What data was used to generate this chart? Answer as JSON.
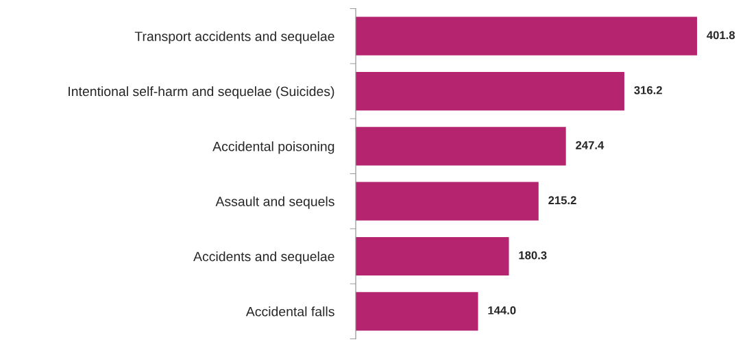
{
  "chart_data": {
    "type": "bar",
    "orientation": "horizontal",
    "categories": [
      "Transport accidents and sequelae",
      "Intentional self-harm and sequelae (Suicides)",
      "Accidental poisoning",
      "Assault and sequels",
      "Accidents and sequelae",
      "Accidental falls"
    ],
    "values": [
      401.8,
      316.2,
      247.4,
      215.2,
      180.3,
      144.0
    ],
    "value_labels": [
      "401.8",
      "316.2",
      "247.4",
      "215.2",
      "180.3",
      "144.0"
    ],
    "color": "#b5246e",
    "grid": false,
    "legend": false
  }
}
